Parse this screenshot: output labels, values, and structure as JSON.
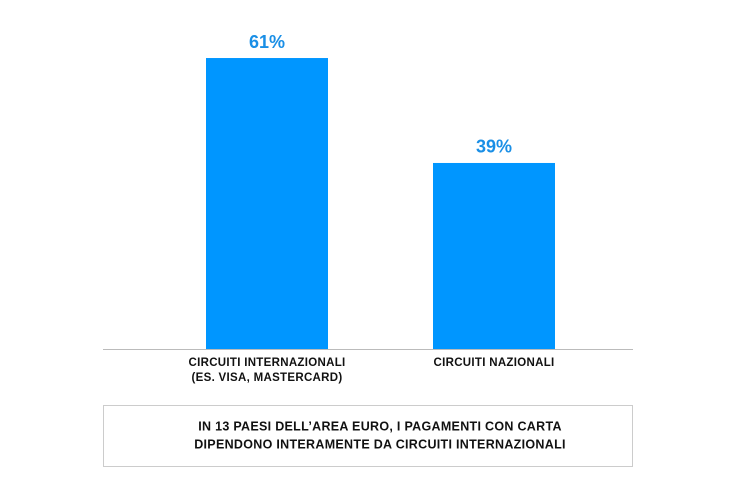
{
  "chart_data": {
    "type": "bar",
    "categories": [
      "CIRCUITI INTERNAZIONALI\n(ES. VISA, MASTERCARD)",
      "CIRCUITI NAZIONALI"
    ],
    "values": [
      61,
      39
    ],
    "value_labels": [
      "61%",
      "39%"
    ],
    "color": "#0096ff",
    "annotation": [
      "IN 13 PAESI DELL’AREA EURO, I PAGAMENTI CON CARTA",
      "DIPENDONO INTERAMENTE DA CIRCUITI INTERNAZIONALI"
    ]
  }
}
